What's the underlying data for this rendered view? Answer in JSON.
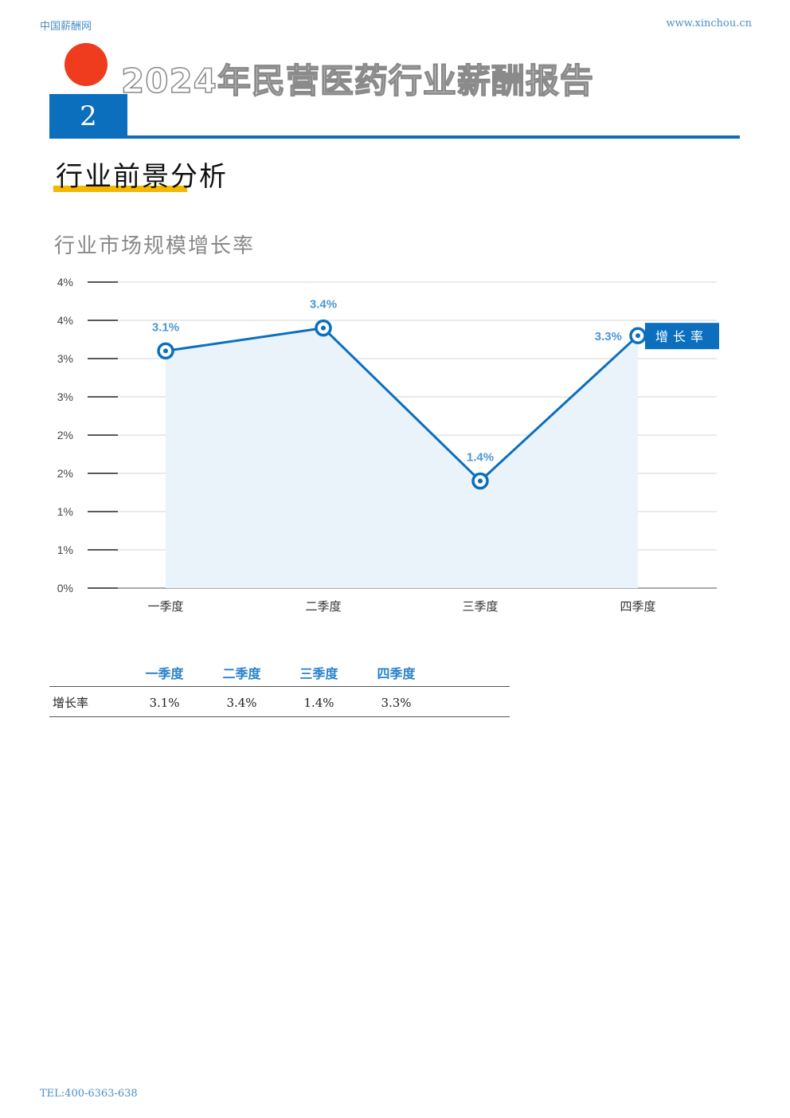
{
  "header": {
    "site_name": "中国薪酬网",
    "site_url": "www.xinchou.cn",
    "report_title": "2024年民营医药行业薪酬报告",
    "chapter_number": "2"
  },
  "section": {
    "title": "行业前景分析"
  },
  "chart_title": "行业市场规模增长率",
  "chart_data": {
    "type": "line",
    "categories": [
      "一季度",
      "二季度",
      "三季度",
      "四季度"
    ],
    "series": [
      {
        "name": "增长率",
        "values": [
          3.1,
          3.4,
          1.4,
          3.3
        ],
        "labels": [
          "3.1%",
          "3.4%",
          "1.4%",
          "3.3%"
        ],
        "color": "#0b6fbe"
      }
    ],
    "ylim": [
      0,
      4
    ],
    "y_tick_values": [
      0,
      0.5,
      1,
      1.5,
      2,
      2.5,
      3,
      3.5,
      4
    ],
    "y_tick_labels": [
      "0%",
      "1%",
      "1%",
      "2%",
      "2%",
      "3%",
      "3%",
      "4%",
      "4%"
    ],
    "xlabel": "",
    "ylabel": "",
    "grid": true,
    "area_fill": "#eaf2fa",
    "legend_position": "right-end"
  },
  "table": {
    "headers": [
      "一季度",
      "二季度",
      "三季度",
      "四季度"
    ],
    "rows": [
      {
        "label": "增长率",
        "values": [
          "3.1%",
          "3.4%",
          "1.4%",
          "3.3%"
        ]
      }
    ]
  },
  "footer": {
    "tel": "TEL:400-6363-638"
  }
}
